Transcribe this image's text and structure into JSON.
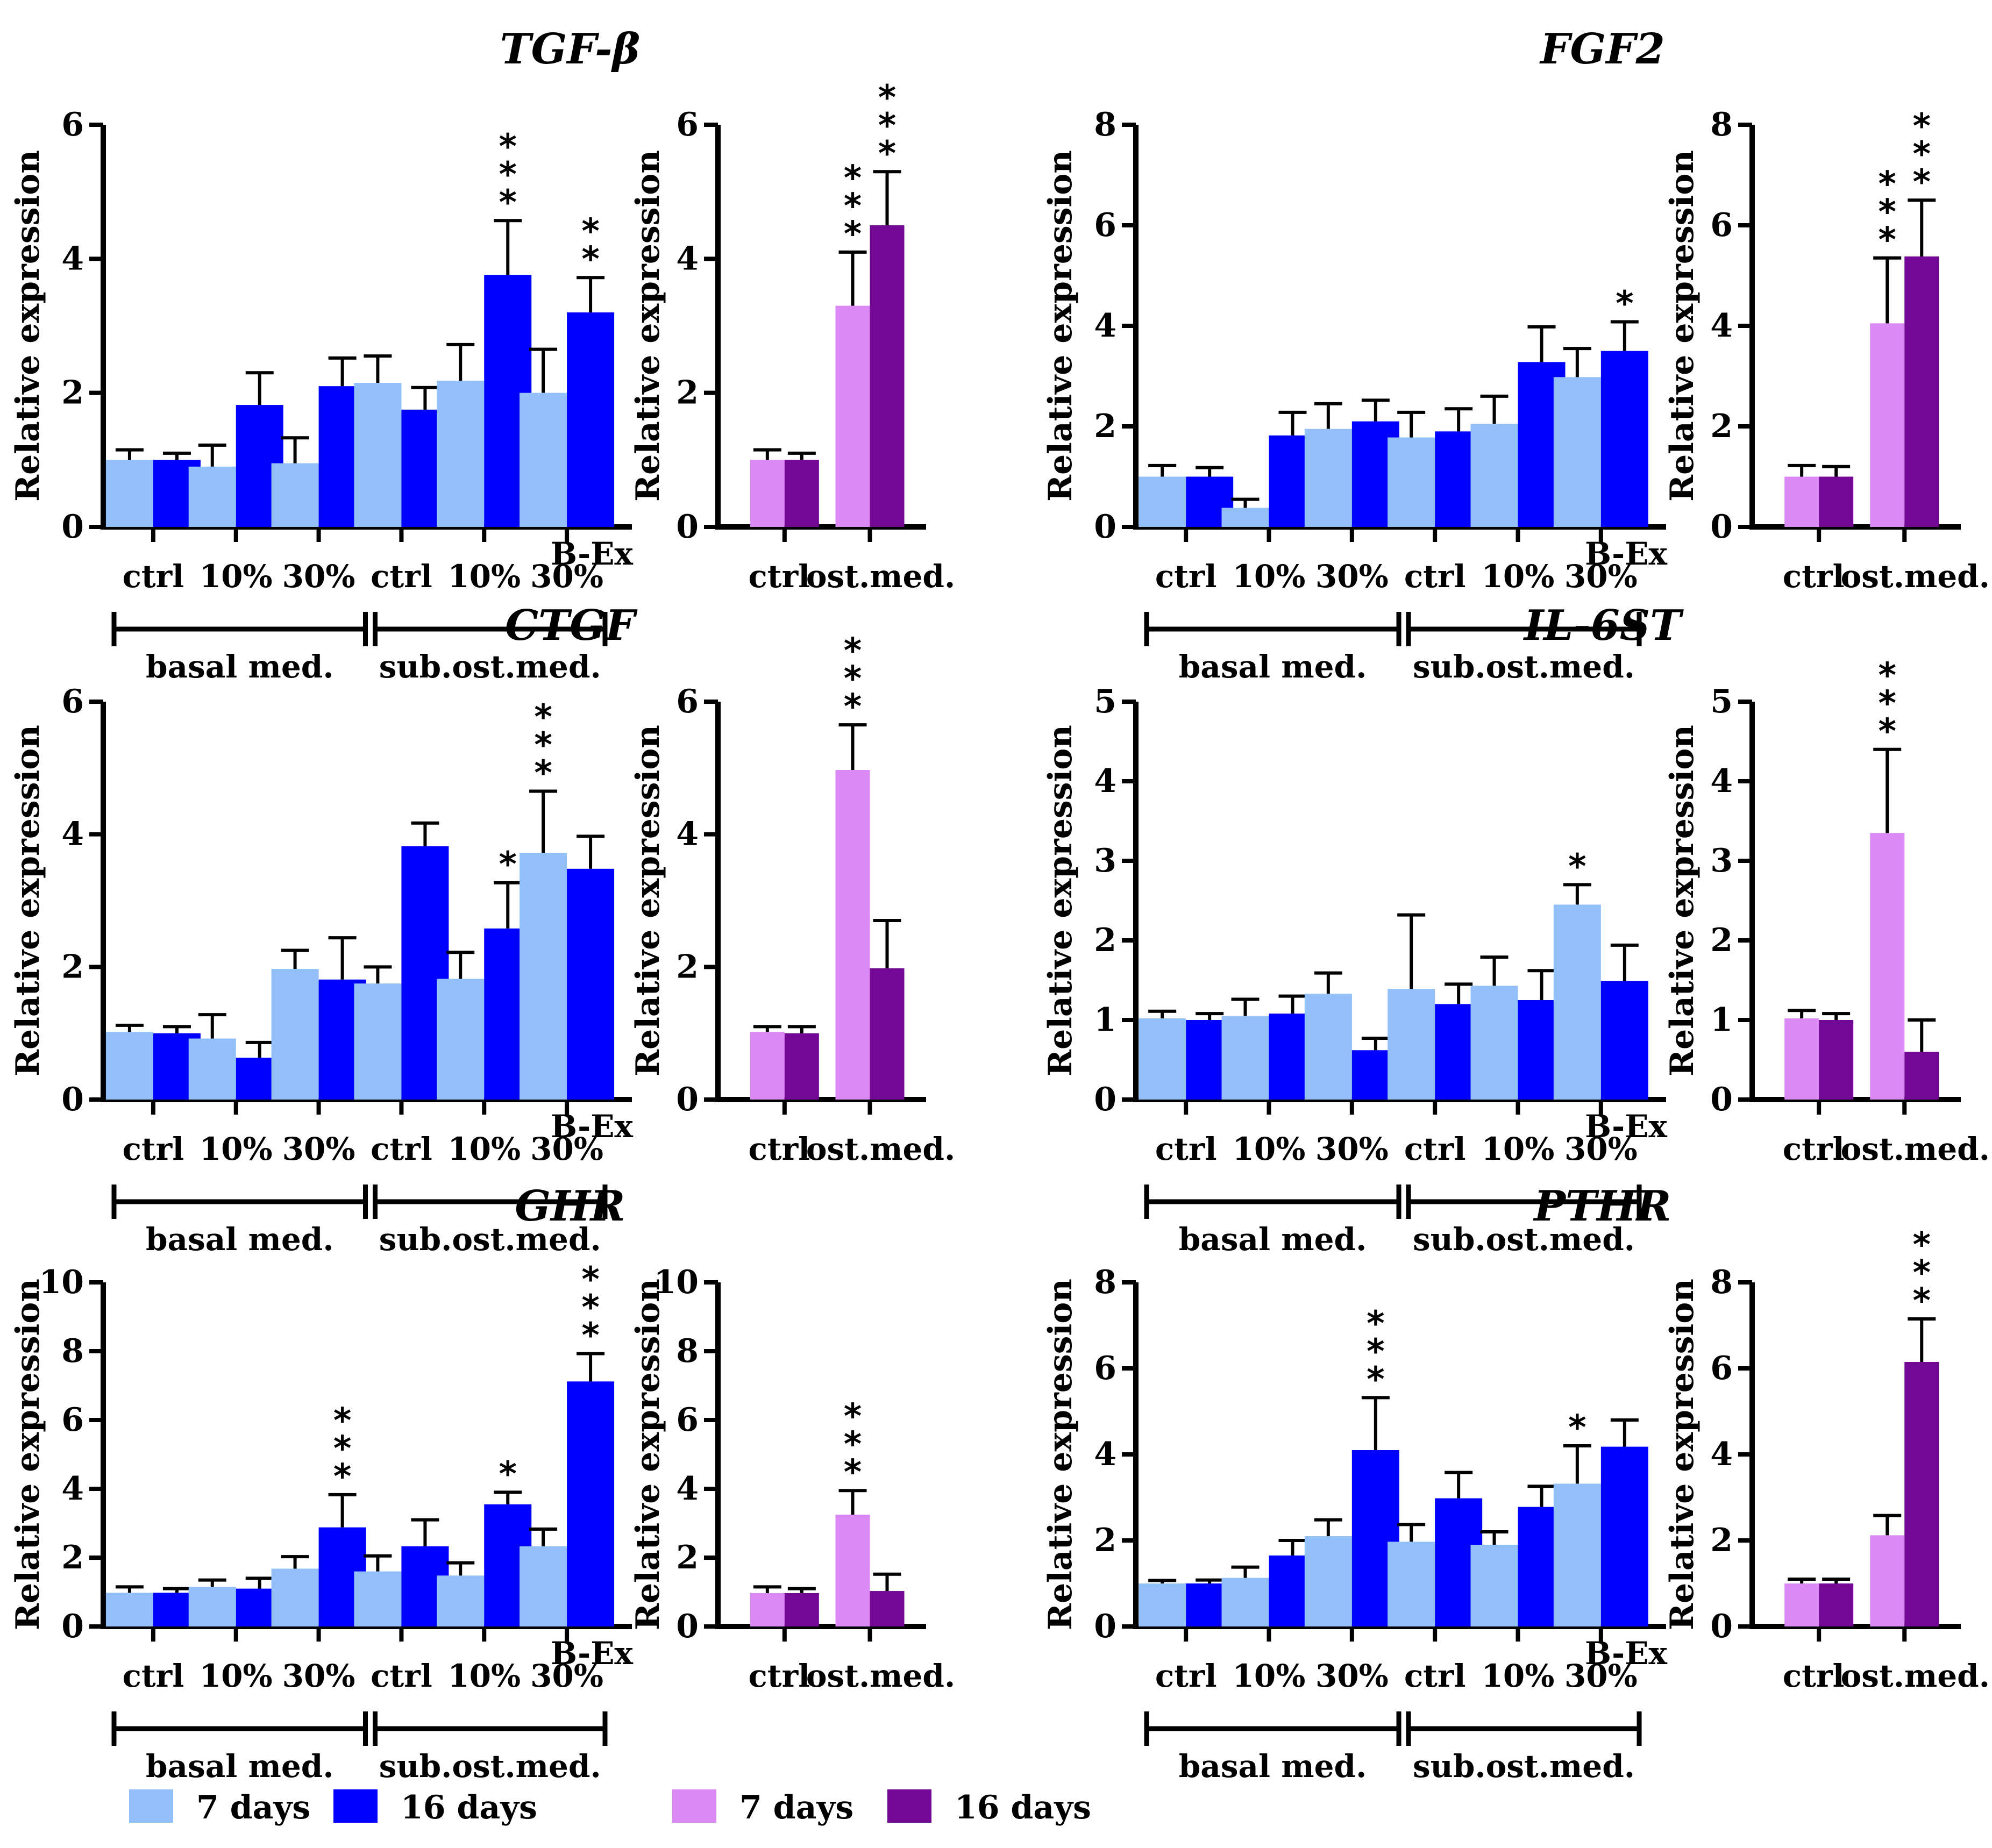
{
  "figure": {
    "colors": {
      "b7": "#93C0F8",
      "b16": "#0000FF",
      "o7": "#DB89F5",
      "o16": "#730895"
    },
    "ylabel": "Relative expression",
    "bex_label": "B-Ex",
    "main_categories": [
      "ctrl",
      "10%",
      "30%",
      "ctrl",
      "10%",
      "30%"
    ],
    "main_groups": [
      "basal med.",
      "sub.ost.med."
    ],
    "ost_categories": [
      "ctrl",
      "ost.med."
    ],
    "legend": [
      {
        "label": "7 days",
        "color_key": "b7"
      },
      {
        "label": "16 days",
        "color_key": "b16"
      },
      {
        "label": "7 days",
        "color_key": "o7"
      },
      {
        "label": "16 days",
        "color_key": "o16"
      }
    ]
  },
  "chart_data": [
    {
      "type": "bar",
      "title": "TGF-β",
      "ylabel": "Relative expression",
      "ylim": [
        0,
        6
      ],
      "yticks": [
        0,
        2,
        4,
        6
      ],
      "main": {
        "categories": [
          "ctrl",
          "10%",
          "30%",
          "ctrl",
          "10%",
          "30%"
        ],
        "groups": [
          "basal med.",
          "sub.ost.med."
        ],
        "series": [
          {
            "name": "7 days",
            "values": [
              1.0,
              0.9,
              0.95,
              2.15,
              2.18,
              2.0
            ],
            "err_top": [
              1.15,
              1.22,
              1.33,
              2.55,
              2.72,
              2.65
            ],
            "sig": [
              "",
              "",
              "",
              "",
              "",
              ""
            ]
          },
          {
            "name": "16 days",
            "values": [
              1.0,
              1.82,
              2.1,
              1.75,
              3.76,
              3.2
            ],
            "err_top": [
              1.1,
              2.3,
              2.52,
              2.08,
              4.57,
              3.72
            ],
            "sig": [
              "",
              "",
              "",
              "",
              "***",
              "**"
            ]
          }
        ]
      },
      "ost": {
        "categories": [
          "ctrl",
          "ost.med."
        ],
        "series": [
          {
            "name": "7 days",
            "values": [
              1.0,
              3.3
            ],
            "err_top": [
              1.15,
              4.1
            ],
            "sig": [
              "",
              "***"
            ]
          },
          {
            "name": "16 days",
            "values": [
              1.0,
              4.5
            ],
            "err_top": [
              1.1,
              5.3
            ],
            "sig": [
              "",
              "***"
            ]
          }
        ]
      }
    },
    {
      "type": "bar",
      "title": "FGF2",
      "ylabel": "Relative expression",
      "ylim": [
        0,
        8
      ],
      "yticks": [
        0,
        2,
        4,
        6,
        8
      ],
      "main": {
        "categories": [
          "ctrl",
          "10%",
          "30%",
          "ctrl",
          "10%",
          "30%"
        ],
        "groups": [
          "basal med.",
          "sub.ost.med."
        ],
        "series": [
          {
            "name": "7 days",
            "values": [
              1.0,
              0.38,
              1.95,
              1.78,
              2.05,
              2.98
            ],
            "err_top": [
              1.22,
              0.55,
              2.45,
              2.28,
              2.6,
              3.55
            ],
            "sig": [
              "",
              "",
              "",
              "",
              "",
              ""
            ]
          },
          {
            "name": "16 days",
            "values": [
              1.0,
              1.82,
              2.1,
              1.9,
              3.28,
              3.5
            ],
            "err_top": [
              1.18,
              2.28,
              2.52,
              2.35,
              3.98,
              4.08
            ],
            "sig": [
              "",
              "",
              "",
              "",
              "",
              "*"
            ]
          }
        ]
      },
      "ost": {
        "categories": [
          "ctrl",
          "ost.med."
        ],
        "series": [
          {
            "name": "7 days",
            "values": [
              1.0,
              4.05
            ],
            "err_top": [
              1.22,
              5.35
            ],
            "sig": [
              "",
              "***"
            ]
          },
          {
            "name": "16 days",
            "values": [
              1.0,
              5.38
            ],
            "err_top": [
              1.2,
              6.5
            ],
            "sig": [
              "",
              "***"
            ]
          }
        ]
      }
    },
    {
      "type": "bar",
      "title": "CTGF",
      "ylabel": "Relative expression",
      "ylim": [
        0,
        6
      ],
      "yticks": [
        0,
        2,
        4,
        6
      ],
      "main": {
        "categories": [
          "ctrl",
          "10%",
          "30%",
          "ctrl",
          "10%",
          "30%"
        ],
        "groups": [
          "basal med.",
          "sub.ost.med."
        ],
        "series": [
          {
            "name": "7 days",
            "values": [
              1.02,
              0.92,
              1.97,
              1.75,
              1.82,
              3.72
            ],
            "err_top": [
              1.12,
              1.28,
              2.25,
              2.0,
              2.22,
              4.65
            ],
            "sig": [
              "",
              "",
              "",
              "",
              "",
              "***"
            ]
          },
          {
            "name": "16 days",
            "values": [
              1.0,
              0.63,
              1.81,
              3.82,
              2.58,
              3.48
            ],
            "err_top": [
              1.1,
              0.86,
              2.44,
              4.17,
              3.27,
              3.97
            ],
            "sig": [
              "",
              "",
              "",
              "",
              "*",
              ""
            ]
          }
        ]
      },
      "ost": {
        "categories": [
          "ctrl",
          "ost.med."
        ],
        "series": [
          {
            "name": "7 days",
            "values": [
              1.02,
              4.97
            ],
            "err_top": [
              1.1,
              5.65
            ],
            "sig": [
              "",
              "***"
            ]
          },
          {
            "name": "16 days",
            "values": [
              1.0,
              1.98
            ],
            "err_top": [
              1.1,
              2.7
            ],
            "sig": [
              "",
              ""
            ]
          }
        ]
      }
    },
    {
      "type": "bar",
      "title": "IL-6ST",
      "ylabel": "Relative expression",
      "ylim": [
        0,
        5
      ],
      "yticks": [
        0,
        1,
        2,
        3,
        4,
        5
      ],
      "main": {
        "categories": [
          "ctrl",
          "10%",
          "30%",
          "ctrl",
          "10%",
          "30%"
        ],
        "groups": [
          "basal med.",
          "sub.ost.med."
        ],
        "series": [
          {
            "name": "7 days",
            "values": [
              1.02,
              1.05,
              1.33,
              1.39,
              1.43,
              2.45
            ],
            "err_top": [
              1.11,
              1.26,
              1.59,
              2.32,
              1.79,
              2.7
            ],
            "sig": [
              "",
              "",
              "",
              "",
              "",
              "*"
            ]
          },
          {
            "name": "16 days",
            "values": [
              1.0,
              1.08,
              0.62,
              1.2,
              1.25,
              1.49
            ],
            "err_top": [
              1.08,
              1.3,
              0.77,
              1.45,
              1.62,
              1.94
            ],
            "sig": [
              "",
              "",
              "",
              "",
              "",
              ""
            ]
          }
        ]
      },
      "ost": {
        "categories": [
          "ctrl",
          "ost.med."
        ],
        "series": [
          {
            "name": "7 days",
            "values": [
              1.02,
              3.35
            ],
            "err_top": [
              1.12,
              4.4
            ],
            "sig": [
              "",
              "***"
            ]
          },
          {
            "name": "16 days",
            "values": [
              1.0,
              0.6
            ],
            "err_top": [
              1.08,
              1.0
            ],
            "sig": [
              "",
              ""
            ]
          }
        ]
      }
    },
    {
      "type": "bar",
      "title": "GHR",
      "ylabel": "Relative expression",
      "ylim": [
        0,
        10
      ],
      "yticks": [
        0,
        2,
        4,
        6,
        8,
        10
      ],
      "main": {
        "categories": [
          "ctrl",
          "10%",
          "30%",
          "ctrl",
          "10%",
          "30%"
        ],
        "groups": [
          "basal med.",
          "sub.ost.med."
        ],
        "series": [
          {
            "name": "7 days",
            "values": [
              0.98,
              1.15,
              1.68,
              1.6,
              1.48,
              2.33
            ],
            "err_top": [
              1.15,
              1.35,
              2.03,
              2.05,
              1.85,
              2.83
            ],
            "sig": [
              "",
              "",
              "",
              "",
              "",
              ""
            ]
          },
          {
            "name": "16 days",
            "values": [
              0.98,
              1.1,
              2.88,
              2.33,
              3.55,
              7.12
            ],
            "err_top": [
              1.1,
              1.4,
              3.83,
              3.1,
              3.9,
              7.93
            ],
            "sig": [
              "",
              "",
              "***",
              "",
              "*",
              "***"
            ]
          }
        ]
      },
      "ost": {
        "categories": [
          "ctrl",
          "ost.med."
        ],
        "series": [
          {
            "name": "7 days",
            "values": [
              0.97,
              3.25
            ],
            "err_top": [
              1.15,
              3.95
            ],
            "sig": [
              "",
              "***"
            ]
          },
          {
            "name": "16 days",
            "values": [
              0.97,
              1.03
            ],
            "err_top": [
              1.1,
              1.52
            ],
            "sig": [
              "",
              ""
            ]
          }
        ]
      }
    },
    {
      "type": "bar",
      "title": "PTHR",
      "ylabel": "Relative expression",
      "ylim": [
        0,
        8
      ],
      "yticks": [
        0,
        2,
        4,
        6,
        8
      ],
      "main": {
        "categories": [
          "ctrl",
          "10%",
          "30%",
          "ctrl",
          "10%",
          "30%"
        ],
        "groups": [
          "basal med.",
          "sub.ost.med."
        ],
        "series": [
          {
            "name": "7 days",
            "values": [
              1.0,
              1.13,
              2.1,
              1.97,
              1.9,
              3.32
            ],
            "err_top": [
              1.07,
              1.38,
              2.48,
              2.37,
              2.2,
              4.2
            ],
            "sig": [
              "",
              "",
              "",
              "",
              "",
              "*"
            ]
          },
          {
            "name": "16 days",
            "values": [
              1.0,
              1.65,
              4.1,
              2.98,
              2.78,
              4.18
            ],
            "err_top": [
              1.08,
              2.0,
              5.32,
              3.58,
              3.26,
              4.8
            ],
            "sig": [
              "",
              "",
              "***",
              "",
              "",
              ""
            ]
          }
        ]
      },
      "ost": {
        "categories": [
          "ctrl",
          "ost.med."
        ],
        "series": [
          {
            "name": "7 days",
            "values": [
              1.0,
              2.12
            ],
            "err_top": [
              1.1,
              2.58
            ],
            "sig": [
              "",
              ""
            ]
          },
          {
            "name": "16 days",
            "values": [
              1.0,
              6.15
            ],
            "err_top": [
              1.1,
              7.15
            ],
            "sig": [
              "",
              "***"
            ]
          }
        ]
      }
    }
  ]
}
